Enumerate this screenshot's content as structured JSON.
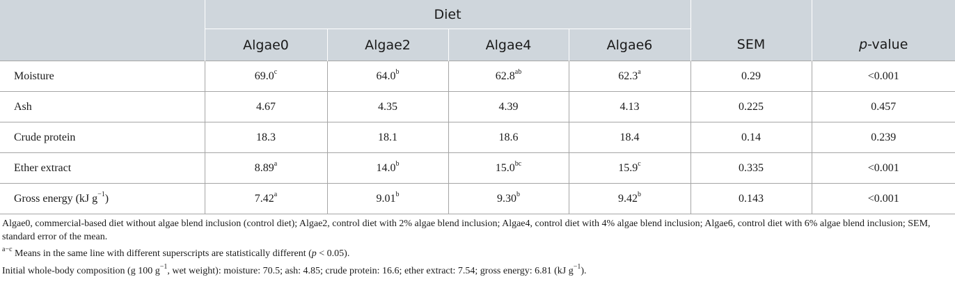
{
  "header": {
    "group_label": "Diet",
    "columns": [
      "Algae0",
      "Algae2",
      "Algae4",
      "Algae6"
    ],
    "sem": "SEM",
    "p_italic": "p",
    "p_rest": "-value"
  },
  "rows": [
    {
      "label": "Moisture",
      "label_sup": "",
      "label_suffix": "",
      "cells": [
        {
          "v": "69.0",
          "s": "c"
        },
        {
          "v": "64.0",
          "s": "b"
        },
        {
          "v": "62.8",
          "s": "ab"
        },
        {
          "v": "62.3",
          "s": "a"
        }
      ],
      "sem": "0.29",
      "p": "<0.001"
    },
    {
      "label": "Ash",
      "label_sup": "",
      "label_suffix": "",
      "cells": [
        {
          "v": "4.67",
          "s": ""
        },
        {
          "v": "4.35",
          "s": ""
        },
        {
          "v": "4.39",
          "s": ""
        },
        {
          "v": "4.13",
          "s": ""
        }
      ],
      "sem": "0.225",
      "p": "0.457"
    },
    {
      "label": "Crude protein",
      "label_sup": "",
      "label_suffix": "",
      "cells": [
        {
          "v": "18.3",
          "s": ""
        },
        {
          "v": "18.1",
          "s": ""
        },
        {
          "v": "18.6",
          "s": ""
        },
        {
          "v": "18.4",
          "s": ""
        }
      ],
      "sem": "0.14",
      "p": "0.239"
    },
    {
      "label": "Ether extract",
      "label_sup": "",
      "label_suffix": "",
      "cells": [
        {
          "v": "8.89",
          "s": "a"
        },
        {
          "v": "14.0",
          "s": "b"
        },
        {
          "v": "15.0",
          "s": "bc"
        },
        {
          "v": "15.9",
          "s": "c"
        }
      ],
      "sem": "0.335",
      "p": "<0.001"
    },
    {
      "label": "Gross energy (kJ g",
      "label_sup": "−1",
      "label_suffix": ")",
      "cells": [
        {
          "v": "7.42",
          "s": "a"
        },
        {
          "v": "9.01",
          "s": "b"
        },
        {
          "v": "9.30",
          "s": "b"
        },
        {
          "v": "9.42",
          "s": "b"
        }
      ],
      "sem": "0.143",
      "p": "<0.001"
    }
  ],
  "notes": {
    "abbreviations": "Algae0, commercial-based diet without algae blend inclusion (control diet); Algae2, control diet with 2% algae blend inclusion; Algae4, control diet with 4% algae blend inclusion; Algae6, control diet with 6% algae blend inclusion; SEM, standard error of the mean.",
    "superscript_mark": "a−c",
    "superscript_text_before": " Means in the same line with different superscripts are statistically different (",
    "superscript_p": "p",
    "superscript_text_after": " < 0.05).",
    "initial_a": "Initial whole-body composition (g 100 g",
    "initial_sup1": "−1",
    "initial_b": ", wet weight): moisture: 70.5; ash: 4.85; crude protein: 16.6; ether extract: 7.54; gross energy: 6.81 (kJ g",
    "initial_sup2": "−1",
    "initial_c": ")."
  }
}
